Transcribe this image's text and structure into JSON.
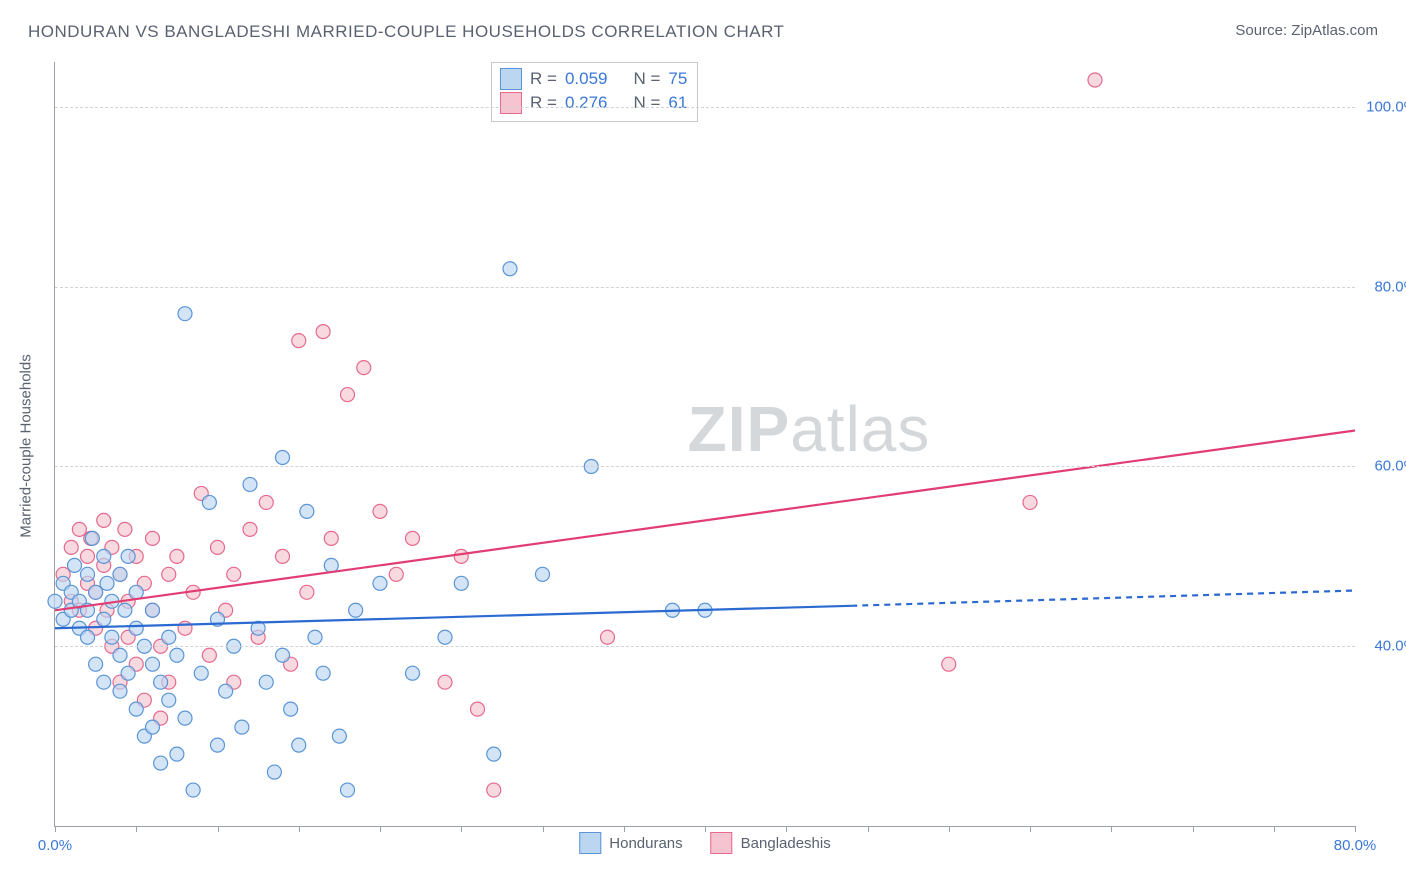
{
  "title": "HONDURAN VS BANGLADESHI MARRIED-COUPLE HOUSEHOLDS CORRELATION CHART",
  "source_label": "Source: ",
  "source_name": "ZipAtlas.com",
  "y_axis_label": "Married-couple Households",
  "watermark": {
    "part1": "ZIP",
    "part2": "atlas"
  },
  "chart": {
    "type": "scatter",
    "xlim": [
      0,
      80
    ],
    "ylim": [
      20,
      105
    ],
    "x_ticks": [
      0,
      5,
      10,
      15,
      20,
      25,
      30,
      35,
      40,
      45,
      50,
      55,
      60,
      65,
      70,
      75,
      80
    ],
    "x_tick_labels": {
      "0": "0.0%",
      "80": "80.0%"
    },
    "y_gridlines": [
      40,
      60,
      80,
      100
    ],
    "y_tick_labels": {
      "40": "40.0%",
      "60": "60.0%",
      "80": "80.0%",
      "100": "100.0%"
    },
    "grid_color": "#d0d4d8",
    "axis_color": "#9aa0a6",
    "tick_label_color": "#3b78d8",
    "marker_radius": 7,
    "background_color": "#ffffff",
    "series": [
      {
        "name": "Hondurans",
        "fill": "#bcd6f2",
        "stroke": "#5a95d6",
        "fill_opacity": 0.65,
        "r_label": "R = ",
        "r_value": "0.059",
        "n_label": "N = ",
        "n_value": "75",
        "trend": {
          "color": "#2a6ad1",
          "width": 2.2,
          "x1": 0,
          "y1": 42.0,
          "x_solid_end": 49,
          "y_solid_end": 44.5,
          "x2": 80,
          "y2": 46.2,
          "dash": "6,5"
        },
        "points": [
          [
            0,
            45
          ],
          [
            0.5,
            43
          ],
          [
            0.5,
            47
          ],
          [
            1,
            46
          ],
          [
            1,
            44
          ],
          [
            1.2,
            49
          ],
          [
            1.5,
            42
          ],
          [
            1.5,
            45
          ],
          [
            2,
            48
          ],
          [
            2,
            41
          ],
          [
            2,
            44
          ],
          [
            2.3,
            52
          ],
          [
            2.5,
            38
          ],
          [
            2.5,
            46
          ],
          [
            3,
            50
          ],
          [
            3,
            43
          ],
          [
            3,
            36
          ],
          [
            3.2,
            47
          ],
          [
            3.5,
            41
          ],
          [
            3.5,
            45
          ],
          [
            4,
            39
          ],
          [
            4,
            48
          ],
          [
            4,
            35
          ],
          [
            4.3,
            44
          ],
          [
            4.5,
            50
          ],
          [
            4.5,
            37
          ],
          [
            5,
            42
          ],
          [
            5,
            33
          ],
          [
            5,
            46
          ],
          [
            5.5,
            40
          ],
          [
            5.5,
            30
          ],
          [
            6,
            38
          ],
          [
            6,
            44
          ],
          [
            6,
            31
          ],
          [
            6.5,
            36
          ],
          [
            6.5,
            27
          ],
          [
            7,
            41
          ],
          [
            7,
            34
          ],
          [
            7.5,
            28
          ],
          [
            7.5,
            39
          ],
          [
            8,
            32
          ],
          [
            8,
            77
          ],
          [
            8.5,
            24
          ],
          [
            9,
            37
          ],
          [
            9.5,
            56
          ],
          [
            10,
            29
          ],
          [
            10,
            43
          ],
          [
            10.5,
            35
          ],
          [
            11,
            40
          ],
          [
            11.5,
            31
          ],
          [
            12,
            58
          ],
          [
            12.5,
            42
          ],
          [
            13,
            36
          ],
          [
            13.5,
            26
          ],
          [
            14,
            61
          ],
          [
            14,
            39
          ],
          [
            14.5,
            33
          ],
          [
            15,
            29
          ],
          [
            15.5,
            55
          ],
          [
            16,
            41
          ],
          [
            16.5,
            37
          ],
          [
            17,
            49
          ],
          [
            17.5,
            30
          ],
          [
            18,
            24
          ],
          [
            18.5,
            44
          ],
          [
            20,
            47
          ],
          [
            22,
            37
          ],
          [
            24,
            41
          ],
          [
            25,
            47
          ],
          [
            27,
            28
          ],
          [
            28,
            82
          ],
          [
            30,
            48
          ],
          [
            33,
            60
          ],
          [
            38,
            44
          ],
          [
            40,
            44
          ]
        ]
      },
      {
        "name": "Bangladeshis",
        "fill": "#f5c4d0",
        "stroke": "#e56a8e",
        "fill_opacity": 0.65,
        "r_label": "R = ",
        "r_value": "0.276",
        "n_label": "N = ",
        "n_value": "61",
        "trend": {
          "color": "#e23d72",
          "width": 2.2,
          "x1": 0,
          "y1": 44.0,
          "x_solid_end": 80,
          "y_solid_end": 64.0,
          "x2": 80,
          "y2": 64.0,
          "dash": ""
        },
        "points": [
          [
            0.5,
            48
          ],
          [
            1,
            51
          ],
          [
            1,
            45
          ],
          [
            1.5,
            53
          ],
          [
            1.5,
            44
          ],
          [
            2,
            50
          ],
          [
            2,
            47
          ],
          [
            2.2,
            52
          ],
          [
            2.5,
            46
          ],
          [
            2.5,
            42
          ],
          [
            3,
            49
          ],
          [
            3,
            54
          ],
          [
            3.2,
            44
          ],
          [
            3.5,
            51
          ],
          [
            3.5,
            40
          ],
          [
            4,
            48
          ],
          [
            4,
            36
          ],
          [
            4.3,
            53
          ],
          [
            4.5,
            45
          ],
          [
            4.5,
            41
          ],
          [
            5,
            50
          ],
          [
            5,
            38
          ],
          [
            5.5,
            47
          ],
          [
            5.5,
            34
          ],
          [
            6,
            52
          ],
          [
            6,
            44
          ],
          [
            6.5,
            40
          ],
          [
            6.5,
            32
          ],
          [
            7,
            48
          ],
          [
            7,
            36
          ],
          [
            7.5,
            50
          ],
          [
            8,
            42
          ],
          [
            8.5,
            46
          ],
          [
            9,
            57
          ],
          [
            9.5,
            39
          ],
          [
            10,
            51
          ],
          [
            10.5,
            44
          ],
          [
            11,
            48
          ],
          [
            11,
            36
          ],
          [
            12,
            53
          ],
          [
            12.5,
            41
          ],
          [
            13,
            56
          ],
          [
            14,
            50
          ],
          [
            14.5,
            38
          ],
          [
            15,
            74
          ],
          [
            15.5,
            46
          ],
          [
            16.5,
            75
          ],
          [
            17,
            52
          ],
          [
            18,
            68
          ],
          [
            19,
            71
          ],
          [
            20,
            55
          ],
          [
            21,
            48
          ],
          [
            22,
            52
          ],
          [
            24,
            36
          ],
          [
            25,
            50
          ],
          [
            26,
            33
          ],
          [
            27,
            24
          ],
          [
            34,
            41
          ],
          [
            55,
            38
          ],
          [
            60,
            56
          ],
          [
            64,
            103
          ]
        ]
      }
    ],
    "legend_box": {
      "swatch_size": 20
    },
    "bottom_legend_labels": [
      "Hondurans",
      "Bangladeshis"
    ]
  }
}
